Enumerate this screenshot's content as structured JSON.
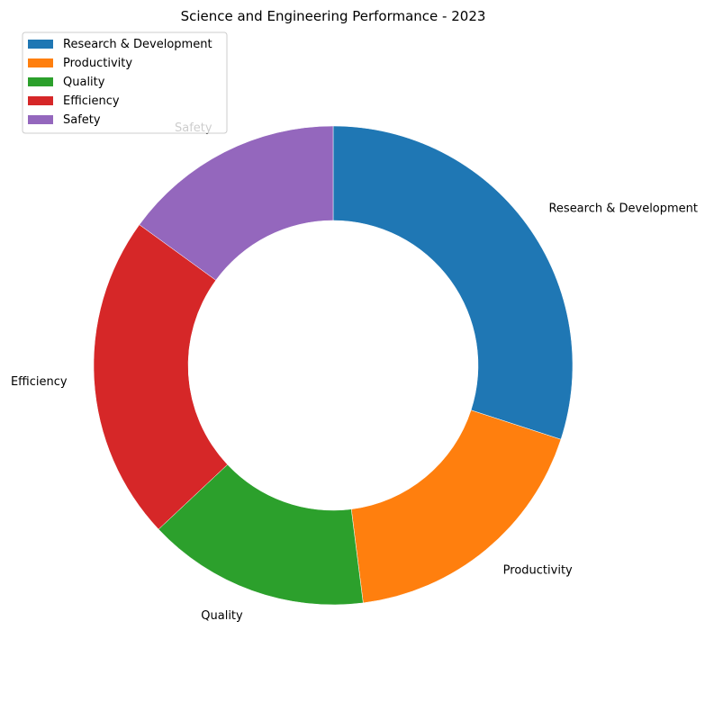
{
  "chart_data": {
    "type": "pie",
    "donut": true,
    "title": "Science and Engineering Performance - 2023",
    "categories": [
      "Research & Development",
      "Productivity",
      "Quality",
      "Efficiency",
      "Safety"
    ],
    "values": [
      30,
      18,
      15,
      22,
      15
    ],
    "colors": [
      "#1f77b4",
      "#ff7f0e",
      "#2ca02c",
      "#d62728",
      "#9467bd"
    ],
    "start_angle": "top",
    "direction": "clockwise",
    "legend": {
      "placement": "top-left",
      "entries": [
        "Research & Development",
        "Productivity",
        "Quality",
        "Efficiency",
        "Safety"
      ]
    }
  }
}
